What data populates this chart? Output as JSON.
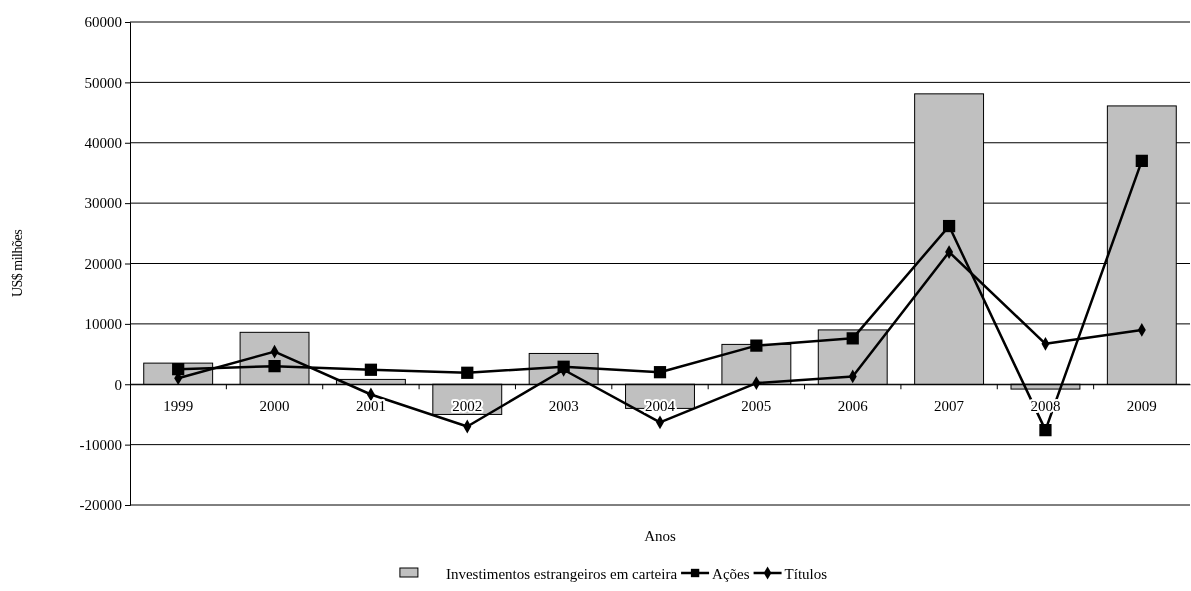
{
  "chart_data": {
    "type": "bar",
    "xlabel": "Anos",
    "ylabel": "US$ milhões",
    "categories": [
      "1999",
      "2000",
      "2001",
      "2002",
      "2003",
      "2004",
      "2005",
      "2006",
      "2007",
      "2008",
      "2009"
    ],
    "series": [
      {
        "name": "Investimentos estrangeiros em carteira",
        "color": "#c0c0c0",
        "values": [
          3500,
          8600,
          800,
          -5000,
          5100,
          -4000,
          6600,
          9000,
          48100,
          -800,
          46100
        ]
      },
      {
        "name": "Ações",
        "type": "line",
        "color": "#000000",
        "marker": "square",
        "values": [
          2500,
          3000,
          2400,
          1900,
          2900,
          2000,
          6400,
          7600,
          26200,
          -7600,
          37000
        ]
      },
      {
        "name": "Títulos",
        "type": "line",
        "color": "#000000",
        "marker": "diamond",
        "values": [
          1000,
          5400,
          -1700,
          -7000,
          2400,
          -6300,
          200,
          1300,
          21900,
          6700,
          9000
        ]
      }
    ],
    "ylim": [
      -20000,
      60000
    ],
    "yticks": [
      -20000,
      -10000,
      0,
      10000,
      20000,
      30000,
      40000,
      50000,
      60000
    ],
    "grid": "y",
    "legend": "bottom"
  }
}
